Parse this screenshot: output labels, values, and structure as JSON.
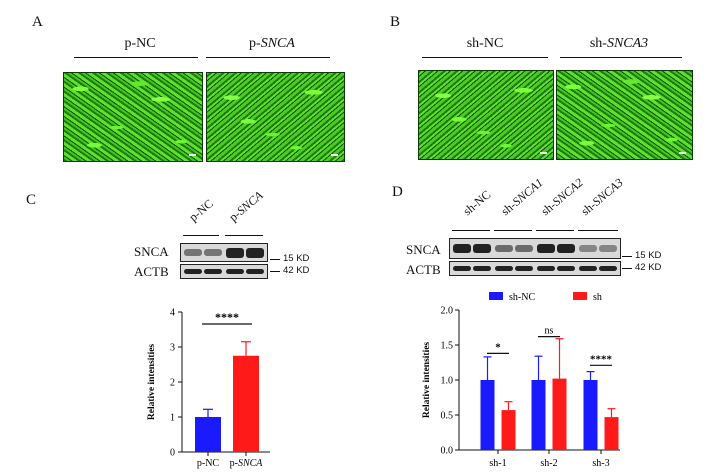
{
  "panels": {
    "A": {
      "letter": "A",
      "left_header": "p-NC",
      "right_header_prefix": "p-",
      "right_header_italic": "SNCA"
    },
    "B": {
      "letter": "B",
      "left_header": "sh-NC",
      "right_header_prefix": "sh-",
      "right_header_italic": "SNCA3"
    },
    "C": {
      "letter": "C",
      "lanes": [
        {
          "prefix": "p-NC",
          "italic": ""
        },
        {
          "prefix": "p-",
          "italic": "SNCA"
        }
      ],
      "rows": [
        "SNCA",
        "ACTB"
      ],
      "markers": [
        "15 KD",
        "42 KD"
      ]
    },
    "D": {
      "letter": "D",
      "lanes": [
        {
          "prefix": "sh-NC",
          "italic": ""
        },
        {
          "prefix": "sh-",
          "italic": "SNCA1"
        },
        {
          "prefix": "sh-",
          "italic": "SNCA2"
        },
        {
          "prefix": "sh-",
          "italic": "SNCA3"
        }
      ],
      "rows": [
        "SNCA",
        "ACTB"
      ],
      "markers": [
        "15 KD",
        "42 KD"
      ]
    }
  },
  "chart_data": [
    {
      "type": "bar",
      "categories": [
        "p-NC",
        "p-SNCA"
      ],
      "values": [
        1.0,
        2.75
      ],
      "errors": [
        0.22,
        0.4
      ],
      "colors": [
        "#1a1aff",
        "#ff1a1a"
      ],
      "ylabel": "Relative intensities",
      "ylim": [
        0,
        4
      ],
      "yticks": [
        "0",
        "1",
        "2",
        "3",
        "4"
      ],
      "significance": [
        {
          "label": "****",
          "between": [
            "p-NC",
            "p-SNCA"
          ]
        }
      ]
    },
    {
      "type": "bar",
      "categories": [
        "sh-1",
        "sh-2",
        "sh-3"
      ],
      "series": [
        {
          "name": "sh-NC",
          "color": "#1a1aff",
          "values": [
            1.0,
            1.0,
            1.0
          ],
          "errors": [
            0.33,
            0.34,
            0.12
          ]
        },
        {
          "name": "sh",
          "color": "#ff1a1a",
          "values": [
            0.57,
            1.02,
            0.47
          ],
          "errors": [
            0.12,
            0.57,
            0.12
          ]
        }
      ],
      "ylabel": "Relative intensities",
      "ylim": [
        0,
        2.0
      ],
      "yticks": [
        "0.0",
        "0.5",
        "1.0",
        "1.5",
        "2.0"
      ],
      "significance": [
        {
          "label": "*",
          "category": "sh-1"
        },
        {
          "label": "ns",
          "category": "sh-2"
        },
        {
          "label": "****",
          "category": "sh-3"
        }
      ],
      "legend_position": "top"
    }
  ]
}
